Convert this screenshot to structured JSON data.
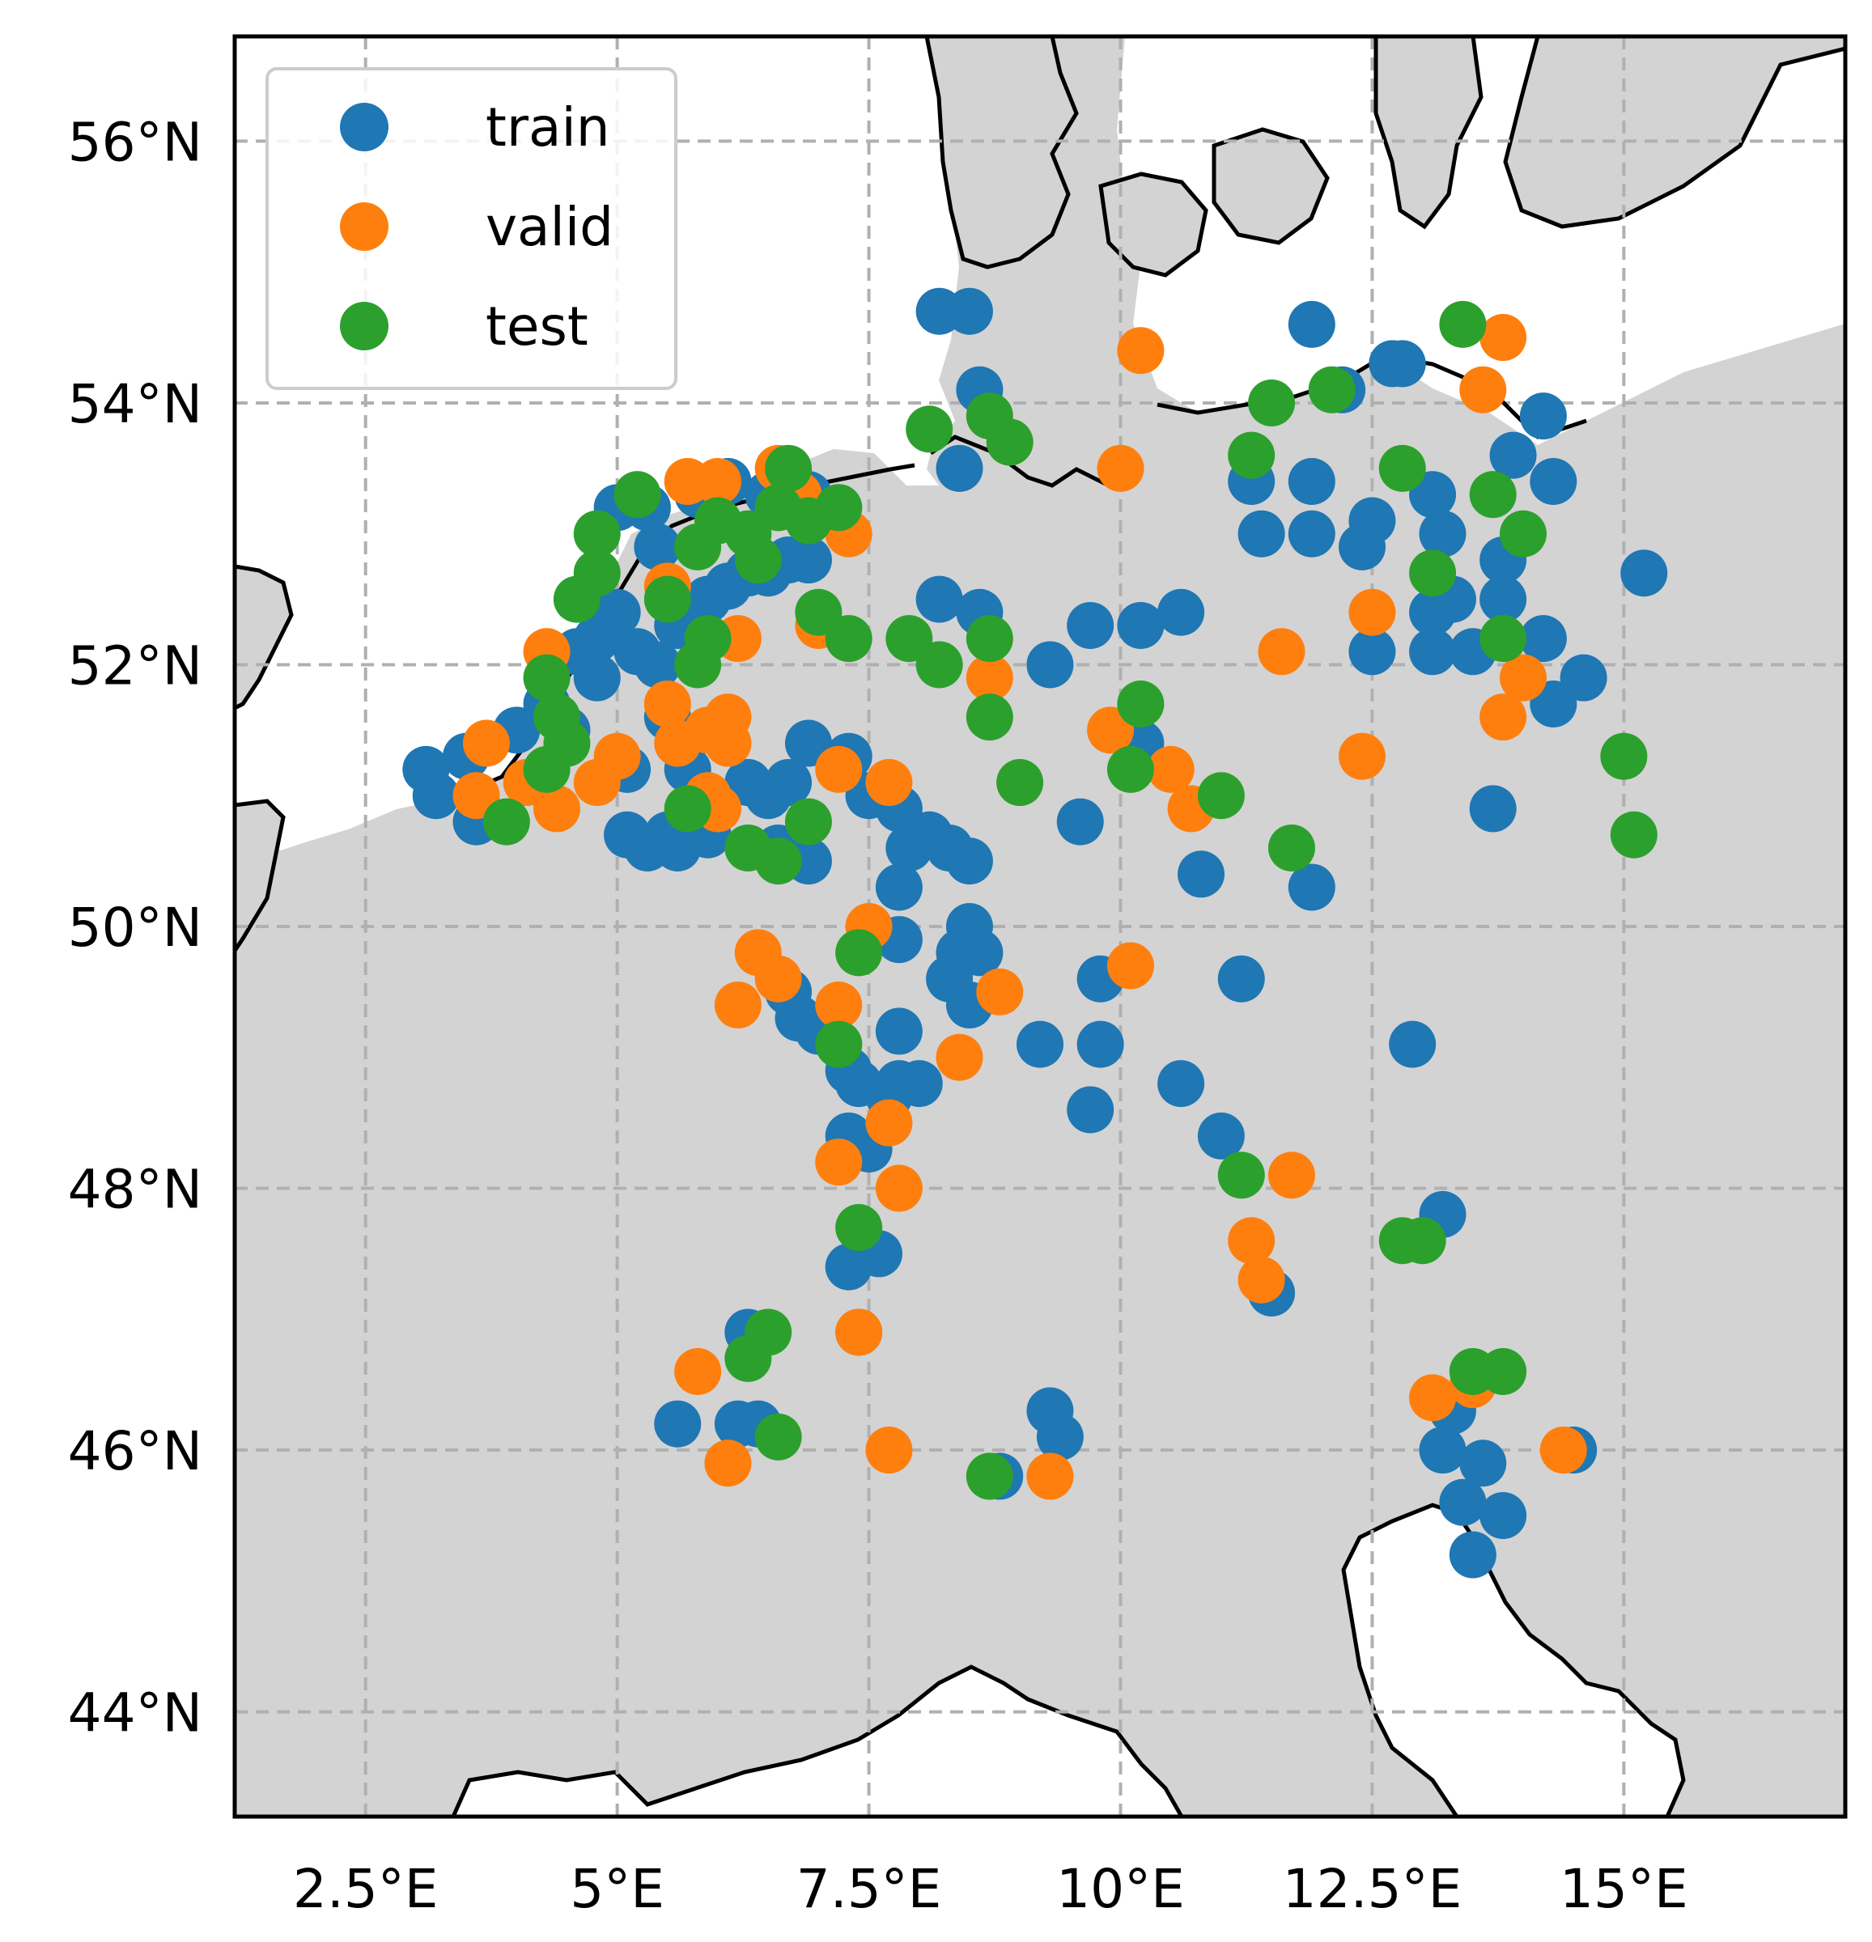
{
  "chart_data": {
    "type": "scatter",
    "title": "",
    "xlabel": "",
    "ylabel": "",
    "xlim": [
      1.2,
      17.2
    ],
    "ylim": [
      43.2,
      56.8
    ],
    "grid": true,
    "legend_position": "top-left",
    "x_ticks": [
      {
        "value": 2.5,
        "label": "2.5°E"
      },
      {
        "value": 5,
        "label": "5°E"
      },
      {
        "value": 7.5,
        "label": "7.5°E"
      },
      {
        "value": 10,
        "label": "10°E"
      },
      {
        "value": 12.5,
        "label": "12.5°E"
      },
      {
        "value": 15,
        "label": "15°E"
      }
    ],
    "y_ticks": [
      {
        "value": 44,
        "label": "44°N"
      },
      {
        "value": 46,
        "label": "46°N"
      },
      {
        "value": 48,
        "label": "48°N"
      },
      {
        "value": 50,
        "label": "50°N"
      },
      {
        "value": 52,
        "label": "52°N"
      },
      {
        "value": 54,
        "label": "54°N"
      },
      {
        "value": 56,
        "label": "56°N"
      }
    ],
    "series": [
      {
        "name": "train",
        "color": "#1f77b4",
        "points": [
          [
            3.5,
            51.3
          ],
          [
            3.1,
            51.2
          ],
          [
            3.2,
            51.0
          ],
          [
            3.6,
            50.8
          ],
          [
            4.0,
            51.5
          ],
          [
            4.3,
            51.7
          ],
          [
            4.5,
            51.5
          ],
          [
            4.6,
            52.1
          ],
          [
            4.8,
            52.2
          ],
          [
            4.8,
            51.9
          ],
          [
            5.0,
            52.4
          ],
          [
            5.2,
            52.1
          ],
          [
            5.1,
            51.2
          ],
          [
            5.1,
            50.7
          ],
          [
            5.3,
            50.6
          ],
          [
            5.5,
            50.7
          ],
          [
            5.6,
            50.6
          ],
          [
            5.9,
            50.7
          ],
          [
            5.7,
            51.2
          ],
          [
            5.5,
            51.6
          ],
          [
            5.4,
            52.0
          ],
          [
            5.6,
            52.3
          ],
          [
            5.9,
            52.5
          ],
          [
            6.1,
            52.6
          ],
          [
            6.3,
            52.7
          ],
          [
            6.5,
            52.7
          ],
          [
            6.7,
            52.8
          ],
          [
            6.9,
            52.8
          ],
          [
            5.4,
            52.9
          ],
          [
            5.3,
            53.2
          ],
          [
            5.8,
            53.3
          ],
          [
            6.1,
            53.4
          ],
          [
            6.5,
            53.3
          ],
          [
            6.9,
            53.3
          ],
          [
            7.2,
            53.2
          ],
          [
            5.0,
            53.2
          ],
          [
            6.3,
            51.1
          ],
          [
            6.5,
            51.0
          ],
          [
            6.7,
            51.1
          ],
          [
            6.9,
            51.4
          ],
          [
            6.6,
            50.6
          ],
          [
            6.9,
            50.5
          ],
          [
            7.3,
            51.3
          ],
          [
            7.5,
            51.0
          ],
          [
            7.8,
            50.9
          ],
          [
            7.9,
            50.6
          ],
          [
            8.1,
            50.7
          ],
          [
            8.3,
            50.6
          ],
          [
            8.5,
            50.5
          ],
          [
            7.8,
            50.3
          ],
          [
            8.5,
            50.0
          ],
          [
            8.4,
            49.8
          ],
          [
            8.6,
            49.8
          ],
          [
            8.3,
            49.6
          ],
          [
            8.5,
            49.4
          ],
          [
            7.8,
            49.9
          ],
          [
            7.8,
            49.2
          ],
          [
            6.7,
            49.5
          ],
          [
            6.8,
            49.3
          ],
          [
            7.0,
            49.2
          ],
          [
            7.2,
            49.1
          ],
          [
            7.3,
            48.9
          ],
          [
            7.4,
            48.8
          ],
          [
            7.7,
            48.7
          ],
          [
            7.8,
            48.8
          ],
          [
            8.0,
            48.8
          ],
          [
            7.3,
            48.4
          ],
          [
            7.5,
            48.3
          ],
          [
            7.3,
            47.4
          ],
          [
            7.6,
            47.5
          ],
          [
            7.4,
            46.9
          ],
          [
            6.3,
            46.9
          ],
          [
            6.2,
            46.2
          ],
          [
            6.4,
            46.2
          ],
          [
            5.6,
            46.2
          ],
          [
            8.8,
            45.8
          ],
          [
            9.3,
            46.3
          ],
          [
            9.4,
            46.1
          ],
          [
            9.2,
            49.1
          ],
          [
            9.7,
            48.6
          ],
          [
            9.8,
            49.1
          ],
          [
            9.8,
            49.6
          ],
          [
            9.6,
            50.8
          ],
          [
            10.6,
            48.8
          ],
          [
            11.5,
            47.2
          ],
          [
            11.0,
            48.4
          ],
          [
            11.2,
            49.6
          ],
          [
            10.8,
            50.4
          ],
          [
            11.9,
            50.3
          ],
          [
            10.2,
            51.4
          ],
          [
            9.3,
            52.0
          ],
          [
            9.7,
            52.3
          ],
          [
            10.2,
            52.3
          ],
          [
            10.6,
            52.4
          ],
          [
            8.2,
            52.5
          ],
          [
            8.6,
            52.4
          ],
          [
            8.2,
            54.7
          ],
          [
            8.5,
            54.7
          ],
          [
            8.6,
            54.1
          ],
          [
            8.4,
            53.5
          ],
          [
            11.3,
            53.4
          ],
          [
            11.4,
            53.0
          ],
          [
            11.9,
            53.4
          ],
          [
            11.9,
            53.0
          ],
          [
            12.2,
            54.1
          ],
          [
            12.4,
            52.9
          ],
          [
            12.5,
            53.1
          ],
          [
            12.5,
            52.1
          ],
          [
            12.8,
            54.3
          ],
          [
            13.1,
            53.3
          ],
          [
            13.2,
            53.0
          ],
          [
            13.1,
            52.4
          ],
          [
            13.3,
            52.5
          ],
          [
            13.5,
            52.1
          ],
          [
            13.1,
            52.1
          ],
          [
            13.8,
            52.8
          ],
          [
            13.8,
            52.5
          ],
          [
            14.2,
            52.2
          ],
          [
            14.3,
            51.7
          ],
          [
            14.2,
            53.9
          ],
          [
            14.3,
            53.4
          ],
          [
            13.9,
            53.6
          ],
          [
            14.6,
            51.9
          ],
          [
            15.2,
            52.7
          ],
          [
            13.7,
            50.9
          ],
          [
            12.9,
            49.1
          ],
          [
            13.2,
            47.8
          ],
          [
            13.3,
            46.3
          ],
          [
            13.2,
            46.0
          ],
          [
            13.4,
            45.6
          ],
          [
            13.6,
            45.9
          ],
          [
            13.8,
            45.5
          ],
          [
            13.5,
            45.2
          ],
          [
            14.5,
            46.0
          ],
          [
            11.9,
            54.6
          ],
          [
            12.7,
            54.3
          ]
        ]
      },
      {
        "name": "valid",
        "color": "#ff7f0e",
        "points": [
          [
            3.7,
            51.4
          ],
          [
            3.6,
            51.0
          ],
          [
            4.3,
            52.1
          ],
          [
            4.1,
            51.1
          ],
          [
            4.4,
            50.9
          ],
          [
            4.8,
            51.1
          ],
          [
            5.0,
            51.3
          ],
          [
            5.5,
            51.7
          ],
          [
            5.6,
            51.4
          ],
          [
            5.5,
            52.6
          ],
          [
            5.9,
            51.5
          ],
          [
            6.1,
            51.4
          ],
          [
            5.9,
            51.0
          ],
          [
            6.0,
            50.9
          ],
          [
            6.1,
            51.6
          ],
          [
            6.2,
            52.2
          ],
          [
            6.0,
            53.4
          ],
          [
            5.7,
            53.4
          ],
          [
            6.6,
            53.5
          ],
          [
            6.8,
            53.3
          ],
          [
            7.0,
            52.3
          ],
          [
            7.2,
            51.2
          ],
          [
            7.7,
            51.1
          ],
          [
            7.3,
            53.0
          ],
          [
            7.5,
            50.0
          ],
          [
            6.4,
            49.8
          ],
          [
            6.6,
            49.6
          ],
          [
            6.2,
            49.4
          ],
          [
            7.2,
            49.4
          ],
          [
            8.8,
            49.5
          ],
          [
            8.4,
            49.0
          ],
          [
            7.7,
            48.5
          ],
          [
            7.8,
            48.0
          ],
          [
            7.2,
            48.2
          ],
          [
            7.4,
            46.9
          ],
          [
            7.7,
            46.0
          ],
          [
            5.8,
            46.6
          ],
          [
            6.1,
            45.9
          ],
          [
            9.3,
            45.8
          ],
          [
            8.7,
            51.9
          ],
          [
            9.9,
            51.5
          ],
          [
            10.1,
            49.7
          ],
          [
            10.2,
            54.4
          ],
          [
            10.0,
            53.5
          ],
          [
            10.5,
            51.2
          ],
          [
            10.7,
            50.9
          ],
          [
            11.6,
            52.1
          ],
          [
            11.7,
            48.1
          ],
          [
            11.3,
            47.6
          ],
          [
            11.4,
            47.3
          ],
          [
            12.4,
            51.3
          ],
          [
            12.5,
            52.4
          ],
          [
            13.1,
            46.4
          ],
          [
            13.5,
            46.5
          ],
          [
            13.8,
            51.6
          ],
          [
            14.0,
            51.9
          ],
          [
            14.4,
            46.0
          ],
          [
            13.6,
            54.1
          ],
          [
            13.8,
            54.5
          ]
        ]
      },
      {
        "name": "test",
        "color": "#2ca02c",
        "points": [
          [
            4.3,
            51.9
          ],
          [
            4.4,
            51.6
          ],
          [
            4.5,
            51.4
          ],
          [
            4.3,
            51.2
          ],
          [
            3.9,
            50.8
          ],
          [
            4.6,
            52.5
          ],
          [
            4.8,
            52.7
          ],
          [
            4.8,
            53.0
          ],
          [
            5.2,
            53.3
          ],
          [
            5.5,
            52.5
          ],
          [
            5.8,
            52.0
          ],
          [
            5.9,
            52.2
          ],
          [
            5.8,
            52.9
          ],
          [
            6.0,
            53.1
          ],
          [
            6.3,
            53.0
          ],
          [
            6.4,
            52.8
          ],
          [
            6.6,
            53.2
          ],
          [
            6.9,
            53.1
          ],
          [
            6.7,
            53.5
          ],
          [
            7.2,
            53.2
          ],
          [
            5.7,
            50.9
          ],
          [
            6.3,
            50.6
          ],
          [
            6.6,
            50.5
          ],
          [
            6.9,
            50.8
          ],
          [
            7.0,
            52.4
          ],
          [
            7.3,
            52.2
          ],
          [
            7.9,
            52.2
          ],
          [
            8.2,
            52.0
          ],
          [
            8.7,
            52.2
          ],
          [
            8.7,
            51.6
          ],
          [
            9.0,
            51.1
          ],
          [
            8.9,
            53.7
          ],
          [
            8.7,
            53.9
          ],
          [
            8.1,
            53.8
          ],
          [
            7.4,
            49.8
          ],
          [
            7.2,
            49.1
          ],
          [
            7.4,
            47.7
          ],
          [
            6.3,
            46.7
          ],
          [
            6.5,
            46.9
          ],
          [
            6.6,
            46.1
          ],
          [
            8.7,
            45.8
          ],
          [
            10.2,
            51.7
          ],
          [
            10.1,
            51.2
          ],
          [
            11.0,
            51.0
          ],
          [
            11.7,
            50.6
          ],
          [
            11.2,
            48.1
          ],
          [
            12.8,
            47.6
          ],
          [
            13.0,
            47.6
          ],
          [
            12.8,
            53.5
          ],
          [
            13.1,
            52.7
          ],
          [
            11.3,
            53.6
          ],
          [
            11.5,
            54.0
          ],
          [
            12.1,
            54.1
          ],
          [
            13.4,
            54.6
          ],
          [
            13.7,
            53.3
          ],
          [
            14.0,
            53.0
          ],
          [
            13.8,
            52.2
          ],
          [
            15.0,
            51.3
          ],
          [
            15.1,
            50.7
          ],
          [
            13.5,
            46.6
          ],
          [
            13.8,
            46.6
          ]
        ]
      }
    ]
  },
  "map": {
    "land_color": "#d3d3d3",
    "water_color": "#ffffff",
    "coastline_color": "#000000",
    "grid_color": "#b0b0b0"
  }
}
